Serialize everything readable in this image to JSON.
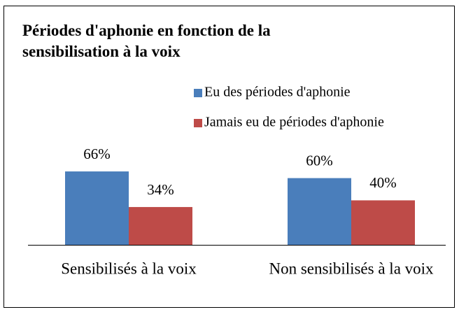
{
  "chart_data": {
    "type": "bar",
    "title": "Périodes d'aphonie en fonction de la sensibilisation à la voix",
    "categories": [
      "Sensibilisés à la voix",
      "Non sensibilisés à la voix"
    ],
    "series": [
      {
        "name": "Eu des périodes d'aphonie",
        "color": "#4a7ebb",
        "values": [
          66,
          60
        ],
        "value_labels": [
          "66%",
          "60%"
        ]
      },
      {
        "name": "Jamais eu de périodes d'aphonie",
        "color": "#be4b48",
        "values": [
          34,
          40
        ],
        "value_labels": [
          "34%",
          "40%"
        ]
      }
    ],
    "legend": "top-right"
  }
}
